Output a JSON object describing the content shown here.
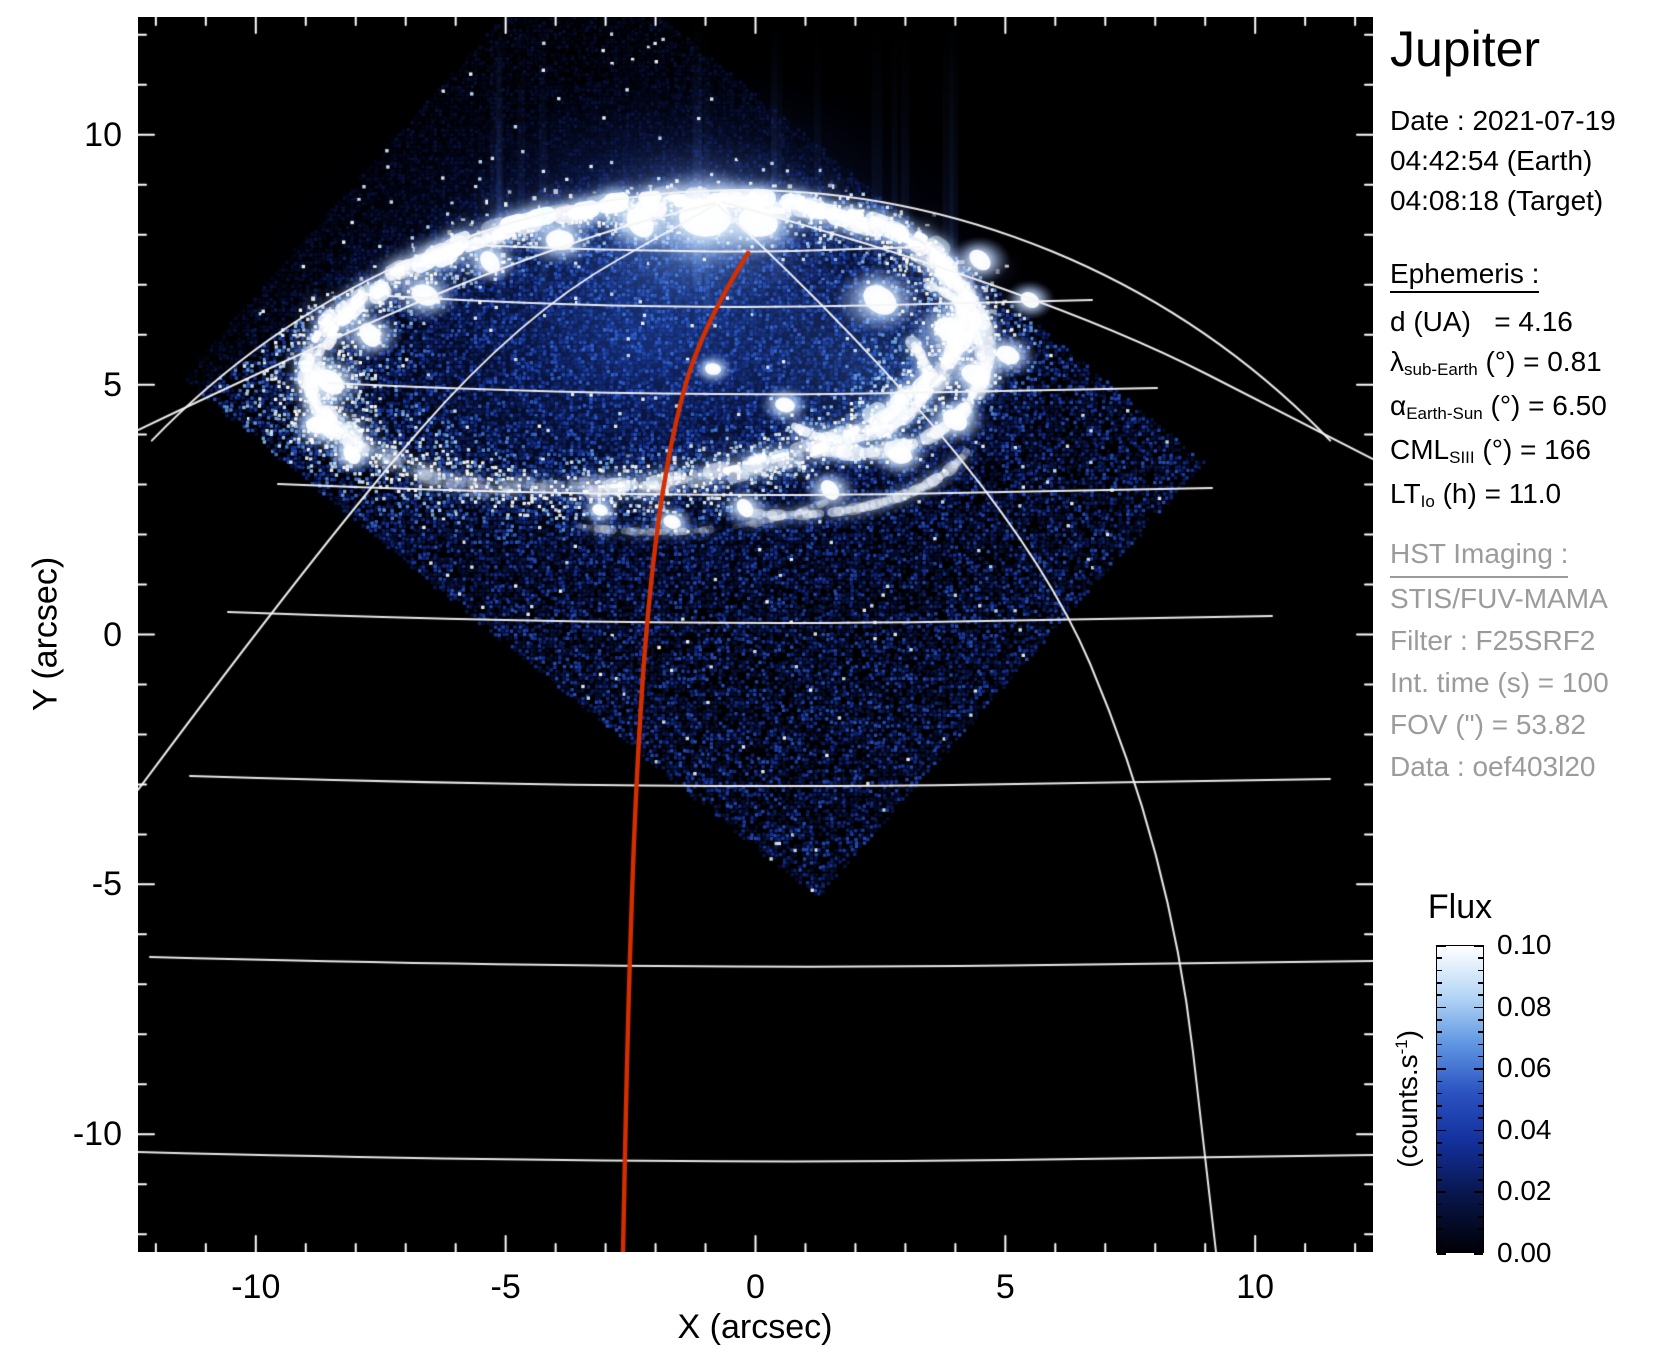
{
  "title": "Jupiter",
  "datetime": {
    "line1": "Date : 2021-07-19",
    "line2": "04:42:54 (Earth)",
    "line3": "04:08:18 (Target)"
  },
  "ephemeris": {
    "heading": "Ephemeris :",
    "rows": [
      {
        "name": "distance",
        "segments": [
          {
            "t": "d (UA)"
          },
          {
            "t": "   = 4.16"
          }
        ]
      },
      {
        "name": "lambda-sub-earth",
        "segments": [
          {
            "t": "λ"
          },
          {
            "t": "sub-Earth",
            "sub": true
          },
          {
            "t": " (°) = 0.81"
          }
        ]
      },
      {
        "name": "alpha-earth-sun",
        "segments": [
          {
            "t": "α"
          },
          {
            "t": "Earth-Sun",
            "sub": true
          },
          {
            "t": " (°) = 6.50"
          }
        ]
      },
      {
        "name": "cml-siii",
        "segments": [
          {
            "t": "CML"
          },
          {
            "t": "SIII",
            "sub": true
          },
          {
            "t": " (°) = 166"
          }
        ]
      },
      {
        "name": "lt-io",
        "segments": [
          {
            "t": "LT"
          },
          {
            "t": "Io",
            "sub": true
          },
          {
            "t": " (h) = 11.0"
          }
        ]
      }
    ]
  },
  "hst": {
    "heading": "HST Imaging :",
    "lines": [
      "STIS/FUV-MAMA",
      "Filter : F25SRF2",
      "Int. time (s) = 100",
      "FOV (\") = 53.82",
      "Data : oef403l20"
    ]
  },
  "colorbar": {
    "title": "Flux",
    "unit_prefix": "(counts.s",
    "unit_sup": "-1",
    "unit_suffix": ")",
    "ticks": [
      "0.10",
      "0.08",
      "0.06",
      "0.04",
      "0.02",
      "0.00"
    ],
    "gradient": [
      [
        0,
        "#000006"
      ],
      [
        0.18,
        "#081548"
      ],
      [
        0.36,
        "#13309c"
      ],
      [
        0.52,
        "#2a52c0"
      ],
      [
        0.68,
        "#5f96e2"
      ],
      [
        0.84,
        "#b7d7f6"
      ],
      [
        1,
        "#ffffff"
      ]
    ]
  },
  "axes": {
    "x": {
      "label": "X (arcsec)",
      "ticks": [
        -10,
        -5,
        0,
        5,
        10
      ]
    },
    "y": {
      "label": "Y (arcsec)",
      "ticks": [
        10,
        5,
        0,
        -5,
        -10
      ]
    }
  },
  "colors": {
    "background": "#ffffff",
    "plot_bg": "#000000",
    "grid": "#f5f5f5",
    "red_line": "#d42f00",
    "text_gray": "#9b9b9b",
    "aurora_halo": "#a9c9ff"
  },
  "chart_data": {
    "type": "heatmap",
    "title": "Jupiter",
    "xlabel": "X (arcsec)",
    "ylabel": "Y (arcsec)",
    "xlim": [
      -12.35,
      12.35
    ],
    "ylim": [
      -12.35,
      12.35
    ],
    "x_ticks": [
      -10,
      -5,
      0,
      5,
      10
    ],
    "y_ticks": [
      10,
      5,
      0,
      -5,
      -10
    ],
    "grid": "planetocentric lat/lon wireframe, white",
    "legend_position": "right colorbar",
    "colorbar": {
      "label": "Flux",
      "unit": "counts.s-1",
      "min": 0.0,
      "max": 0.1,
      "ticks": [
        0.1,
        0.08,
        0.06,
        0.04,
        0.02,
        0.0
      ]
    },
    "description": "HST STIS/FUV-MAMA far-UV image of Jupiter's northern auroral oval. Bright emission ring centered near (-2.3, +5.8) arcsec spanning about 13 arcsec in X; detector field of view is a 45-degree-rotated square of blue photon noise; red curve marks the central meridian (CML 166 SIII); white curves are the planetary limb, latitude parallels and longitude meridians.",
    "observation": {
      "date": "2021-07-19",
      "time_earth": "04:42:54",
      "time_target": "04:08:18",
      "d_UA": 4.16,
      "lambda_subEarth_deg": 0.81,
      "alpha_EarthSun_deg": 6.5,
      "CML_SIII_deg": 166,
      "LT_Io_h": 11.0,
      "instrument": "STIS/FUV-MAMA",
      "filter": "F25SRF2",
      "int_time_s": 100,
      "FOV_arcsec": 53.82,
      "data_id": "oef403l20"
    }
  }
}
